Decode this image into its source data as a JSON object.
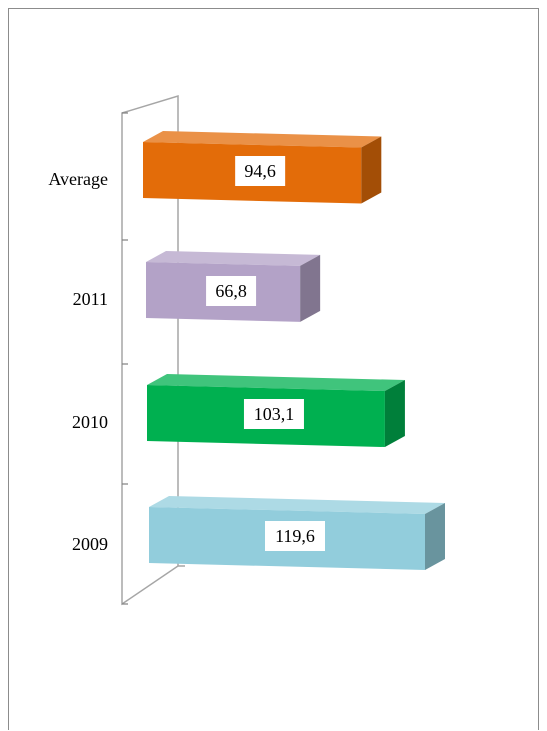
{
  "chart_data": {
    "type": "bar",
    "orientation": "horizontal",
    "style": "3d",
    "categories": [
      "Average",
      "2011",
      "2010",
      "2009"
    ],
    "values": [
      94.6,
      66.8,
      103.1,
      119.6
    ],
    "value_labels": [
      "94,6",
      "66,8",
      "103,1",
      "119,6"
    ],
    "colors": [
      "#e36c09",
      "#b3a2c7",
      "#00b050",
      "#92cddc"
    ],
    "title": "",
    "xlabel": "",
    "ylabel": "",
    "legend": "none",
    "grid": false
  }
}
